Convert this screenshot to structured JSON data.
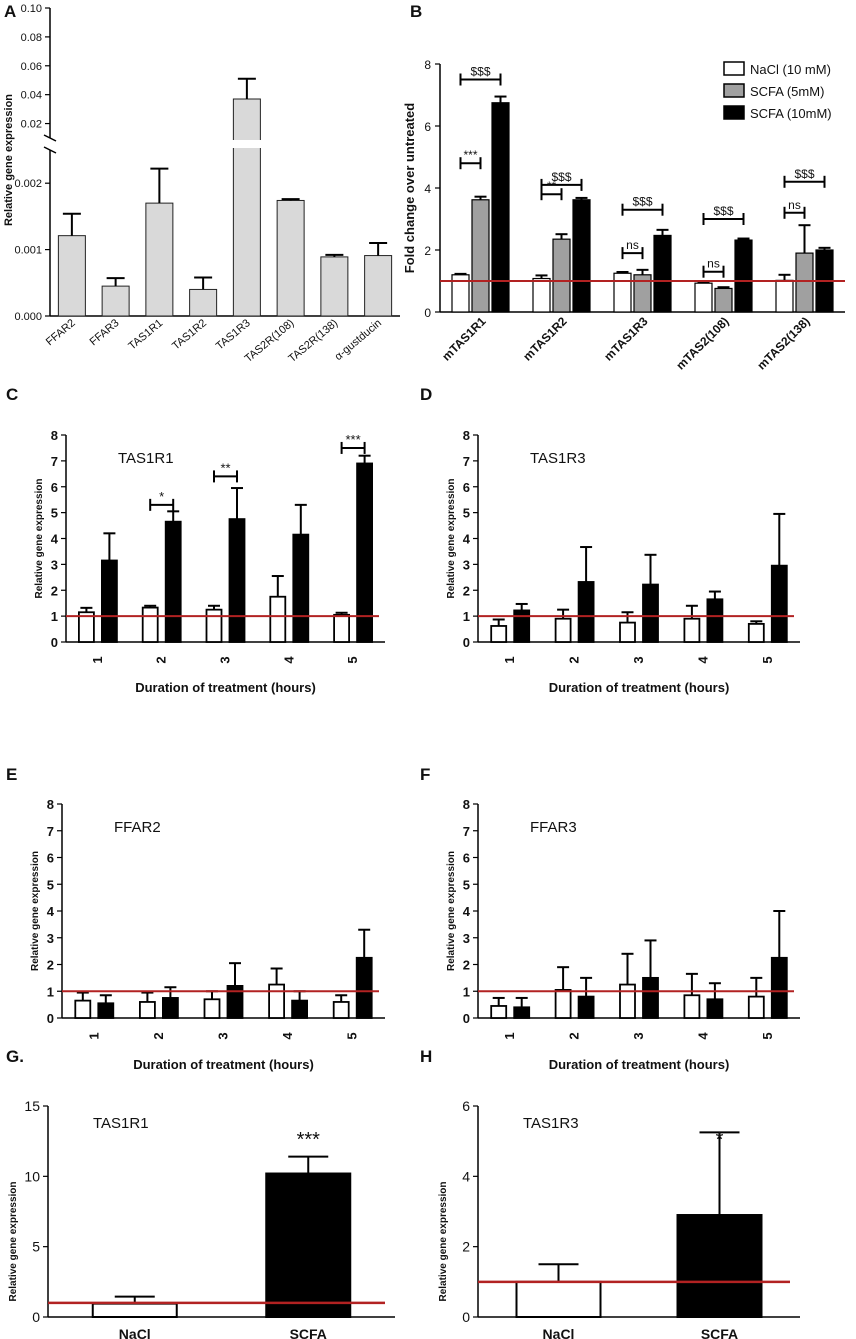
{
  "figure": {
    "panel_labels": [
      "A",
      "B",
      "C",
      "D",
      "E",
      "F",
      "G.",
      "H"
    ],
    "reference_line_color": "#b22222"
  },
  "chart_data": [
    {
      "panel": "A",
      "type": "bar",
      "ylabel": "Relative gene expression",
      "categories": [
        "FFAR2",
        "FFAR3",
        "TAS1R1",
        "TAS1R2",
        "TAS1R3",
        "TAS2R(108)",
        "TAS2R(138)",
        "α-gustducin"
      ],
      "values": [
        0.00121,
        0.00045,
        0.0017,
        0.0004,
        0.037,
        0.00174,
        0.00089,
        0.00091
      ],
      "errors": [
        0.00033,
        0.00012,
        0.00052,
        0.00018,
        0.014,
        2e-05,
        3e-05,
        0.00019
      ],
      "bar_color": "#d9d9d9",
      "y_lower_ticks": [
        "0.000",
        "0.001",
        "0.002"
      ],
      "y_upper_ticks": [
        "0.02",
        "0.04",
        "0.06",
        "0.08",
        "0.10"
      ],
      "broken_axis": true
    },
    {
      "panel": "B",
      "type": "bar",
      "ylabel": "Fold change over untreated",
      "ylim": [
        0,
        8
      ],
      "yticks": [
        "0",
        "2",
        "4",
        "6",
        "8"
      ],
      "categories": [
        "mTAS1R1",
        "mTAS1R2",
        "mTAS1R3",
        "mTAS2(108)",
        "mTAS2(138)"
      ],
      "series": [
        {
          "name": "NaCl (10 mM)",
          "color": "#ffffff",
          "values": [
            1.2,
            1.08,
            1.25,
            0.93,
            1.02
          ],
          "errors": [
            0.03,
            0.1,
            0.04,
            0.04,
            0.18
          ]
        },
        {
          "name": "SCFA (5mM)",
          "color": "#a0a0a0",
          "values": [
            3.62,
            2.35,
            1.2,
            0.76,
            1.9
          ],
          "errors": [
            0.1,
            0.16,
            0.16,
            0.04,
            0.9
          ]
        },
        {
          "name": "SCFA (10mM)",
          "color": "#000000",
          "values": [
            6.75,
            3.62,
            2.47,
            2.32,
            2.0
          ],
          "errors": [
            0.2,
            0.06,
            0.18,
            0.05,
            0.07
          ]
        }
      ],
      "reference_line": 1,
      "annotations": [
        {
          "category": 0,
          "text": "$$$",
          "from_series": 0,
          "to_series": 2,
          "y": 7.5
        },
        {
          "category": 0,
          "text": "***",
          "from_series": 0,
          "to_series": 1,
          "y": 4.8
        },
        {
          "category": 1,
          "text": "$$$",
          "from_series": 0,
          "to_series": 2,
          "y": 4.1
        },
        {
          "category": 1,
          "text": "**",
          "from_series": 0,
          "to_series": 1,
          "y": 3.8
        },
        {
          "category": 2,
          "text": "$$$",
          "from_series": 0,
          "to_series": 2,
          "y": 3.3
        },
        {
          "category": 2,
          "text": "ns",
          "from_series": 0,
          "to_series": 1,
          "y": 1.9
        },
        {
          "category": 3,
          "text": "$$$",
          "from_series": 0,
          "to_series": 2,
          "y": 3.0
        },
        {
          "category": 3,
          "text": "ns",
          "from_series": 0,
          "to_series": 1,
          "y": 1.3
        },
        {
          "category": 4,
          "text": "$$$",
          "from_series": 0,
          "to_series": 2,
          "y": 4.2
        },
        {
          "category": 4,
          "text": "ns",
          "from_series": 0,
          "to_series": 1,
          "y": 3.2
        }
      ]
    },
    {
      "panel": "C",
      "type": "bar",
      "title": "TAS1R1",
      "ylabel": "Relative gene expression",
      "xlabel": "Duration of treatment (hours)",
      "ylim": [
        0,
        8
      ],
      "yticks": [
        "0",
        "1",
        "2",
        "3",
        "4",
        "5",
        "6",
        "7",
        "8"
      ],
      "categories": [
        "1",
        "2",
        "3",
        "4",
        "5"
      ],
      "series": [
        {
          "name": "NaCl",
          "color": "#ffffff",
          "values": [
            1.15,
            1.33,
            1.25,
            1.75,
            1.05
          ],
          "errors": [
            0.17,
            0.07,
            0.15,
            0.8,
            0.08
          ]
        },
        {
          "name": "SCFA",
          "color": "#000000",
          "values": [
            3.15,
            4.65,
            4.75,
            4.15,
            6.9
          ],
          "errors": [
            1.05,
            0.4,
            1.2,
            1.15,
            0.3
          ]
        }
      ],
      "reference_line": 1,
      "annotations": [
        {
          "category": 1,
          "text": "*",
          "y": 5.3
        },
        {
          "category": 2,
          "text": "**",
          "y": 6.4
        },
        {
          "category": 4,
          "text": "***",
          "y": 7.5
        }
      ]
    },
    {
      "panel": "D",
      "type": "bar",
      "title": "TAS1R3",
      "ylabel": "Relative gene expression",
      "xlabel": "Duration of treatment (hours)",
      "ylim": [
        0,
        8
      ],
      "yticks": [
        "0",
        "1",
        "2",
        "3",
        "4",
        "5",
        "6",
        "7",
        "8"
      ],
      "categories": [
        "1",
        "2",
        "3",
        "4",
        "5"
      ],
      "series": [
        {
          "name": "NaCl",
          "color": "#ffffff",
          "values": [
            0.62,
            0.9,
            0.75,
            0.9,
            0.7
          ],
          "errors": [
            0.25,
            0.35,
            0.4,
            0.5,
            0.1
          ]
        },
        {
          "name": "SCFA",
          "color": "#000000",
          "values": [
            1.22,
            2.32,
            2.22,
            1.65,
            2.95
          ],
          "errors": [
            0.25,
            1.35,
            1.15,
            0.3,
            2.0
          ]
        }
      ],
      "reference_line": 1,
      "annotations": []
    },
    {
      "panel": "E",
      "type": "bar",
      "title": "FFAR2",
      "ylabel": "Relative gene expression",
      "xlabel": "Duration of treatment (hours)",
      "ylim": [
        0,
        8
      ],
      "yticks": [
        "0",
        "1",
        "2",
        "3",
        "4",
        "5",
        "6",
        "7",
        "8"
      ],
      "categories": [
        "1",
        "2",
        "3",
        "4",
        "5"
      ],
      "series": [
        {
          "name": "NaCl",
          "color": "#ffffff",
          "values": [
            0.65,
            0.6,
            0.7,
            1.25,
            0.6
          ],
          "errors": [
            0.3,
            0.35,
            0.3,
            0.6,
            0.25
          ]
        },
        {
          "name": "SCFA",
          "color": "#000000",
          "values": [
            0.55,
            0.75,
            1.2,
            0.65,
            2.25
          ],
          "errors": [
            0.3,
            0.4,
            0.85,
            0.35,
            1.05
          ]
        }
      ],
      "reference_line": 1,
      "annotations": []
    },
    {
      "panel": "F",
      "type": "bar",
      "title": "FFAR3",
      "ylabel": "Relative gene expression",
      "xlabel": "Duration of treatment (hours)",
      "ylim": [
        0,
        8
      ],
      "yticks": [
        "0",
        "1",
        "2",
        "3",
        "4",
        "5",
        "6",
        "7",
        "8"
      ],
      "categories": [
        "1",
        "2",
        "3",
        "4",
        "5"
      ],
      "series": [
        {
          "name": "NaCl",
          "color": "#ffffff",
          "values": [
            0.45,
            1.05,
            1.25,
            0.85,
            0.8
          ],
          "errors": [
            0.3,
            0.85,
            1.15,
            0.8,
            0.7
          ]
        },
        {
          "name": "SCFA",
          "color": "#000000",
          "values": [
            0.4,
            0.8,
            1.5,
            0.7,
            2.25
          ],
          "errors": [
            0.35,
            0.7,
            1.4,
            0.6,
            1.75
          ]
        }
      ],
      "reference_line": 1,
      "annotations": []
    },
    {
      "panel": "G",
      "type": "bar",
      "title": "TAS1R1",
      "ylabel": "Relative gene expression",
      "ylim": [
        0,
        15
      ],
      "yticks": [
        "0",
        "5",
        "10",
        "15"
      ],
      "categories": [
        "NaCl",
        "SCFA"
      ],
      "colors": [
        "#ffffff",
        "#000000"
      ],
      "values": [
        0.95,
        10.2
      ],
      "errors": [
        0.5,
        1.2
      ],
      "reference_line": 1,
      "annotations": [
        {
          "category": 1,
          "text": "***"
        }
      ]
    },
    {
      "panel": "H",
      "type": "bar",
      "title": "TAS1R3",
      "ylabel": "Relative gene expression",
      "ylim": [
        0,
        6
      ],
      "yticks": [
        "0",
        "2",
        "4",
        "6"
      ],
      "categories": [
        "NaCl",
        "SCFA"
      ],
      "colors": [
        "#ffffff",
        "#000000"
      ],
      "values": [
        1.0,
        2.9
      ],
      "errors": [
        0.5,
        2.35
      ],
      "reference_line": 1,
      "annotations": [
        {
          "category": 1,
          "text": "*"
        }
      ]
    }
  ]
}
